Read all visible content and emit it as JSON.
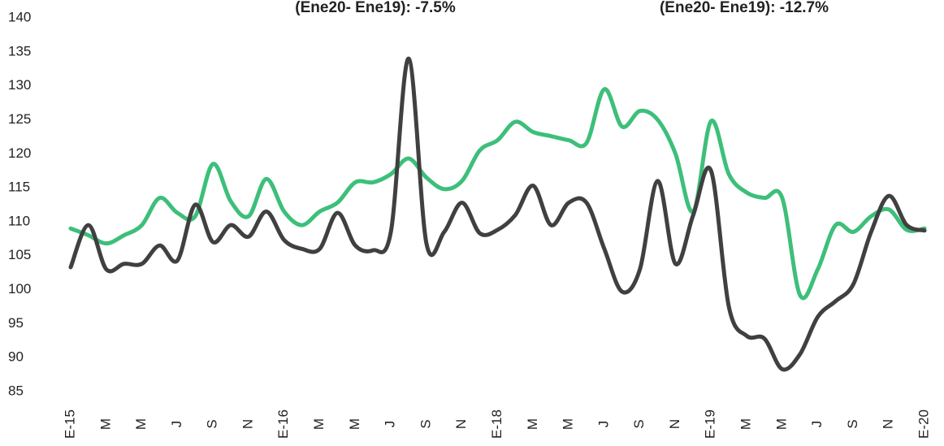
{
  "chart_data": {
    "type": "line",
    "annotations": [
      "(Ene20- Ene19): -7.5%",
      "(Ene20- Ene19): -12.7%"
    ],
    "categories": [
      "E-15",
      null,
      "M",
      null,
      "M",
      null,
      "J",
      null,
      "S",
      null,
      "N",
      null,
      "E-16",
      null,
      "M",
      null,
      "M",
      null,
      "J",
      null,
      "S",
      null,
      "N",
      null,
      "E-18",
      null,
      "M",
      null,
      "M",
      null,
      "J",
      null,
      "S",
      null,
      "N",
      null,
      "E-19",
      null,
      "M",
      null,
      "M",
      null,
      "J",
      null,
      "S",
      null,
      "N",
      null,
      "E-20"
    ],
    "series": [
      {
        "color": "#3dbf7a",
        "values": [
          109,
          108,
          106.8,
          108,
          109.5,
          113.5,
          111.3,
          110.8,
          118.5,
          113,
          110.8,
          116.3,
          111.5,
          109.5,
          111.5,
          112.8,
          115.8,
          115.8,
          117,
          119.3,
          116.5,
          114.8,
          116,
          120.5,
          122,
          124.7,
          123.2,
          122.6,
          122,
          121.6,
          129.5,
          124,
          126.3,
          125,
          120,
          111.5,
          124.8,
          117,
          114.3,
          113.5,
          113.5,
          99.2,
          103,
          109.5,
          108.5,
          110.8,
          111.8,
          108.8,
          109
        ]
      },
      {
        "color": "#404040",
        "values": [
          103.3,
          109.5,
          103,
          103.8,
          103.8,
          106.5,
          104.3,
          112.5,
          107,
          109.5,
          107.8,
          111.5,
          107.3,
          106,
          106,
          111.3,
          106.5,
          105.8,
          108.5,
          134,
          106.8,
          108.5,
          112.8,
          108.3,
          108.8,
          111,
          115.3,
          109.5,
          112.8,
          112.8,
          106,
          99.7,
          103,
          116,
          103.8,
          111,
          117.5,
          97.5,
          93.2,
          92.8,
          88.3,
          90.5,
          96,
          98.3,
          100.8,
          108.5,
          113.8,
          109.5,
          108.7
        ]
      }
    ],
    "ylim": [
      85,
      140
    ],
    "yticks": [
      85,
      90,
      95,
      100,
      105,
      110,
      115,
      120,
      125,
      130,
      135,
      140
    ],
    "grid": false
  }
}
